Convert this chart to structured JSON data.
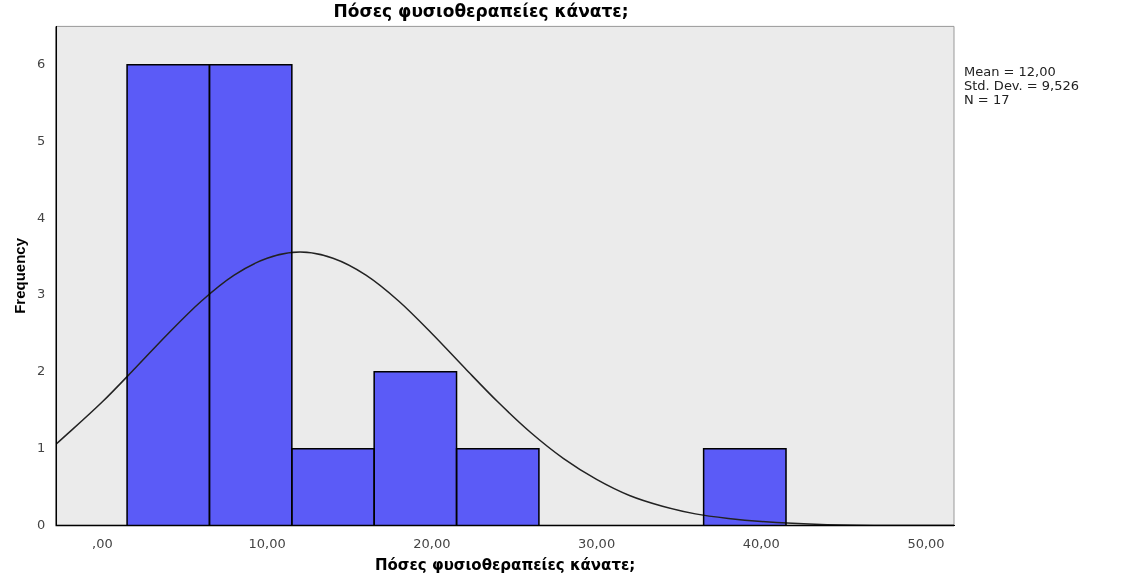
{
  "chart_data": {
    "type": "histogram",
    "title": "Πόσες φυσιοθεραπείες κάνατε;",
    "xlabel": "Πόσες φυσιοθεραπείες κάνατε;",
    "ylabel": "Frequency",
    "xlim": [
      -2.8,
      51.7
    ],
    "ylim": [
      0,
      6.5
    ],
    "xticks": [
      {
        "value": 0,
        "label": ",00"
      },
      {
        "value": 10,
        "label": "10,00"
      },
      {
        "value": 20,
        "label": "20,00"
      },
      {
        "value": 30,
        "label": "30,00"
      },
      {
        "value": 40,
        "label": "40,00"
      },
      {
        "value": 50,
        "label": "50,00"
      }
    ],
    "yticks": [
      0,
      1,
      2,
      3,
      4,
      5,
      6
    ],
    "grid": false,
    "legend": false,
    "marker": "none",
    "line_style": "solid",
    "series": [
      {
        "color": "#5b5bf7",
        "bins": [
          1.5,
          6.5,
          11.5,
          16.5,
          21.5,
          26.5,
          31.5,
          36.5,
          41.5
        ],
        "values": [
          6,
          6,
          1,
          2,
          1,
          0,
          0,
          1
        ]
      },
      {
        "type": "line",
        "color": "#222222",
        "x": [
          -2.8,
          0,
          2,
          4,
          6,
          8,
          10,
          12,
          14,
          16,
          18,
          20,
          22,
          24,
          26,
          28,
          30,
          32,
          34,
          36,
          38,
          40,
          44,
          48,
          51.7
        ],
        "values": [
          1.06,
          1.61,
          2.05,
          2.5,
          2.92,
          3.26,
          3.48,
          3.56,
          3.48,
          3.26,
          2.92,
          2.5,
          2.05,
          1.61,
          1.21,
          0.87,
          0.6,
          0.39,
          0.25,
          0.15,
          0.09,
          0.05,
          0.01,
          0,
          0
        ]
      }
    ],
    "annotations": [
      "Mean = 12,00",
      "Std. Dev. = 9,526",
      "N = 17"
    ]
  }
}
